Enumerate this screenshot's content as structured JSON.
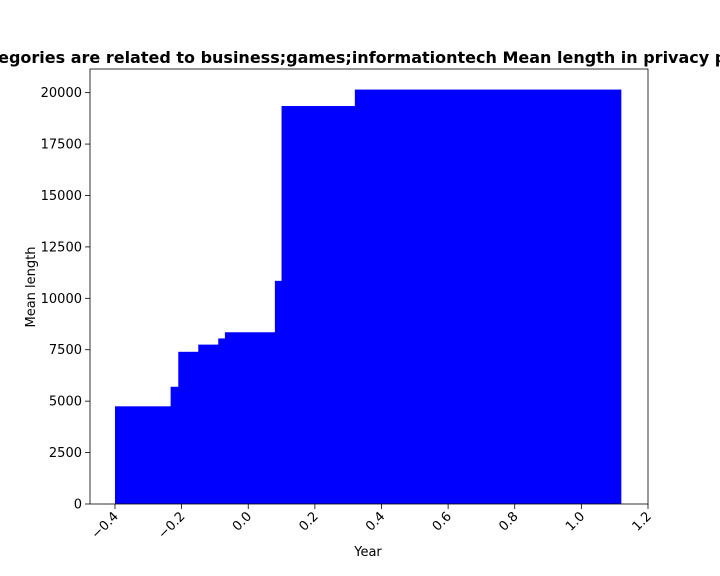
{
  "chart_data": {
    "type": "bar",
    "title": "Categories are related to business;games;informationtech Mean length in privacy policy",
    "xlabel": "Year",
    "ylabel": "Mean length",
    "xlim": [
      -0.475,
      1.2
    ],
    "ylim": [
      0,
      21150
    ],
    "xticks": [
      -0.4,
      -0.2,
      0.0,
      0.2,
      0.4,
      0.6,
      0.8,
      1.0,
      1.2
    ],
    "xtick_labels": [
      "−0.4",
      "−0.2",
      "0.0",
      "0.2",
      "0.4",
      "0.6",
      "0.8",
      "1.0",
      "1.2"
    ],
    "yticks": [
      0,
      2500,
      5000,
      7500,
      10000,
      12500,
      15000,
      17500,
      20000
    ],
    "ytick_labels": [
      "0",
      "2500",
      "5000",
      "7500",
      "10000",
      "12500",
      "15000",
      "17500",
      "20000"
    ],
    "bar_width": 0.8,
    "color": "#0000ff",
    "x": [
      -0.4,
      -0.233,
      -0.21,
      -0.15,
      -0.09,
      -0.07,
      0.08,
      0.1,
      0.32
    ],
    "values": [
      4750,
      5700,
      7400,
      7750,
      8050,
      8350,
      10850,
      19350,
      20150
    ],
    "grid": false,
    "legend": "none"
  }
}
